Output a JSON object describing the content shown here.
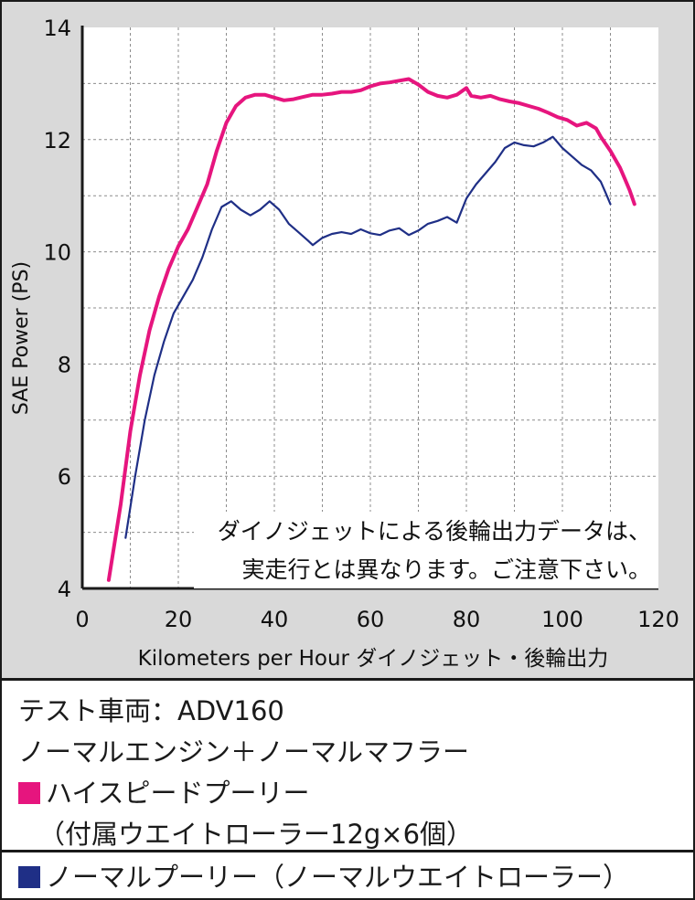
{
  "chart_data": {
    "type": "line",
    "xlabel": "Kilometers per Hour ダイノジェット・後輪出力",
    "ylabel": "SAE Power (PS)",
    "xlim": [
      0,
      120
    ],
    "ylim": [
      4,
      14
    ],
    "x_ticks": [
      0,
      20,
      40,
      60,
      80,
      100,
      120
    ],
    "y_ticks": [
      4,
      6,
      8,
      10,
      12,
      14
    ],
    "grid": true,
    "annotation": [
      "ダイノジェットによる後輪出力データは、",
      "実走行とは異なります。ご注意下さい。"
    ],
    "series": [
      {
        "name": "ハイスピードプーリー",
        "color": "#e6157e",
        "points": [
          [
            5.5,
            4.15
          ],
          [
            8,
            5.5
          ],
          [
            10,
            6.8
          ],
          [
            12,
            7.8
          ],
          [
            14,
            8.6
          ],
          [
            16,
            9.2
          ],
          [
            18,
            9.7
          ],
          [
            20,
            10.1
          ],
          [
            22,
            10.4
          ],
          [
            24,
            10.8
          ],
          [
            26,
            11.2
          ],
          [
            28,
            11.8
          ],
          [
            30,
            12.3
          ],
          [
            32,
            12.6
          ],
          [
            34,
            12.75
          ],
          [
            36,
            12.8
          ],
          [
            38,
            12.8
          ],
          [
            40,
            12.75
          ],
          [
            42,
            12.7
          ],
          [
            44,
            12.72
          ],
          [
            46,
            12.76
          ],
          [
            48,
            12.8
          ],
          [
            50,
            12.8
          ],
          [
            52,
            12.82
          ],
          [
            54,
            12.85
          ],
          [
            56,
            12.85
          ],
          [
            58,
            12.88
          ],
          [
            60,
            12.95
          ],
          [
            62,
            13.0
          ],
          [
            64,
            13.02
          ],
          [
            66,
            13.05
          ],
          [
            68,
            13.08
          ],
          [
            70,
            12.98
          ],
          [
            72,
            12.85
          ],
          [
            74,
            12.78
          ],
          [
            76,
            12.75
          ],
          [
            78,
            12.8
          ],
          [
            80,
            12.92
          ],
          [
            81,
            12.78
          ],
          [
            83,
            12.75
          ],
          [
            85,
            12.78
          ],
          [
            87,
            12.72
          ],
          [
            89,
            12.68
          ],
          [
            91,
            12.65
          ],
          [
            93,
            12.6
          ],
          [
            95,
            12.55
          ],
          [
            97,
            12.48
          ],
          [
            99,
            12.4
          ],
          [
            101,
            12.35
          ],
          [
            103,
            12.25
          ],
          [
            105,
            12.3
          ],
          [
            107,
            12.2
          ],
          [
            108,
            12.05
          ],
          [
            110,
            11.8
          ],
          [
            112,
            11.5
          ],
          [
            113,
            11.3
          ],
          [
            114,
            11.1
          ],
          [
            115,
            10.85
          ]
        ]
      },
      {
        "name": "ノーマルプーリー",
        "color": "#1f2f86",
        "points": [
          [
            9,
            4.9
          ],
          [
            11,
            6.0
          ],
          [
            13,
            7.0
          ],
          [
            15,
            7.8
          ],
          [
            17,
            8.4
          ],
          [
            19,
            8.9
          ],
          [
            21,
            9.2
          ],
          [
            23,
            9.5
          ],
          [
            25,
            9.9
          ],
          [
            27,
            10.4
          ],
          [
            29,
            10.8
          ],
          [
            31,
            10.9
          ],
          [
            33,
            10.75
          ],
          [
            35,
            10.65
          ],
          [
            37,
            10.75
          ],
          [
            39,
            10.9
          ],
          [
            41,
            10.75
          ],
          [
            43,
            10.5
          ],
          [
            45,
            10.35
          ],
          [
            47,
            10.2
          ],
          [
            48,
            10.12
          ],
          [
            50,
            10.25
          ],
          [
            52,
            10.32
          ],
          [
            54,
            10.35
          ],
          [
            56,
            10.32
          ],
          [
            58,
            10.4
          ],
          [
            60,
            10.33
          ],
          [
            62,
            10.3
          ],
          [
            64,
            10.38
          ],
          [
            66,
            10.42
          ],
          [
            68,
            10.3
          ],
          [
            70,
            10.38
          ],
          [
            72,
            10.5
          ],
          [
            74,
            10.55
          ],
          [
            76,
            10.62
          ],
          [
            78,
            10.52
          ],
          [
            80,
            10.95
          ],
          [
            82,
            11.2
          ],
          [
            84,
            11.4
          ],
          [
            86,
            11.6
          ],
          [
            88,
            11.85
          ],
          [
            90,
            11.95
          ],
          [
            92,
            11.9
          ],
          [
            94,
            11.88
          ],
          [
            96,
            11.95
          ],
          [
            98,
            12.05
          ],
          [
            100,
            11.85
          ],
          [
            102,
            11.7
          ],
          [
            104,
            11.55
          ],
          [
            106,
            11.45
          ],
          [
            108,
            11.25
          ],
          [
            109,
            11.05
          ],
          [
            110,
            10.85
          ]
        ]
      }
    ]
  },
  "legend": {
    "vehicle": "テスト車両：ADV160",
    "config": "ノーマルエンジン＋ノーマルマフラー",
    "series1_label": "ハイスピードプーリー",
    "series1_note": "（付属ウエイトローラー12g×6個）",
    "series2_label": "ノーマルプーリー（ノーマルウエイトローラー）",
    "colors": {
      "pink": "#e6157e",
      "navy": "#1f2f86"
    }
  }
}
